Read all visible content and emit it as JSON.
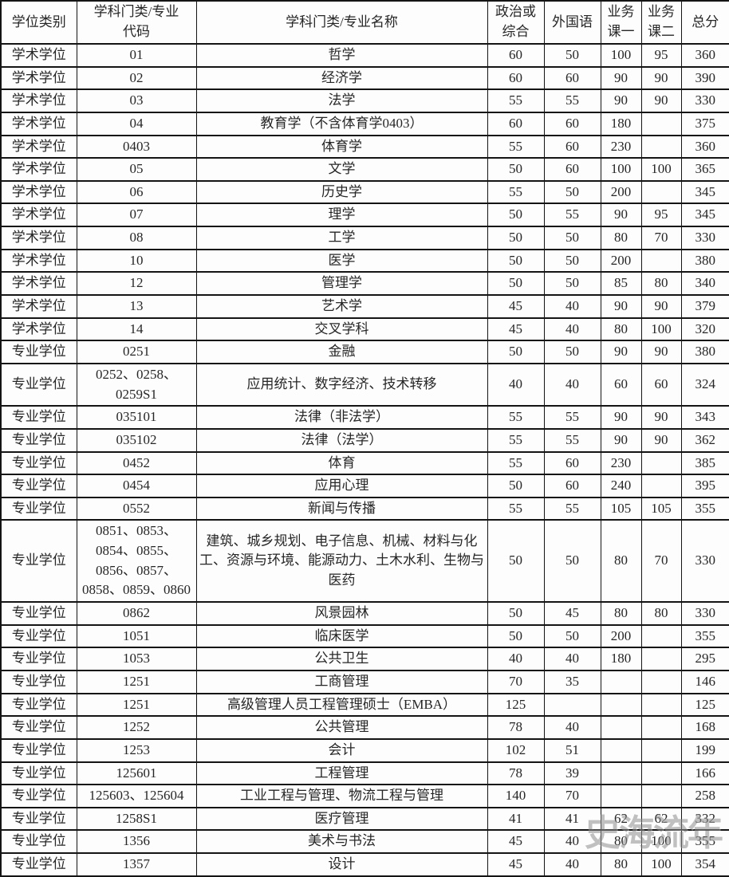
{
  "table": {
    "headers": [
      "学位类别",
      "学科门类/专业\n代码",
      "学科门类/专业名称",
      "政治或综合",
      "外国语",
      "业务课一",
      "业务课二",
      "总分"
    ],
    "rows": [
      {
        "category": "学术学位",
        "code": "01",
        "name": "哲学",
        "politics": "60",
        "foreign": "50",
        "course1": "100",
        "course2": "95",
        "total": "360"
      },
      {
        "category": "学术学位",
        "code": "02",
        "name": "经济学",
        "politics": "60",
        "foreign": "60",
        "course1": "90",
        "course2": "90",
        "total": "390"
      },
      {
        "category": "学术学位",
        "code": "03",
        "name": "法学",
        "politics": "55",
        "foreign": "55",
        "course1": "90",
        "course2": "90",
        "total": "330"
      },
      {
        "category": "学术学位",
        "code": "04",
        "name": "教育学（不含体育学0403）",
        "politics": "60",
        "foreign": "60",
        "course1": "180",
        "course2": "",
        "total": "375"
      },
      {
        "category": "学术学位",
        "code": "0403",
        "name": "体育学",
        "politics": "55",
        "foreign": "60",
        "course1": "230",
        "course2": "",
        "total": "360"
      },
      {
        "category": "学术学位",
        "code": "05",
        "name": "文学",
        "politics": "50",
        "foreign": "60",
        "course1": "100",
        "course2": "100",
        "total": "365"
      },
      {
        "category": "学术学位",
        "code": "06",
        "name": "历史学",
        "politics": "55",
        "foreign": "50",
        "course1": "200",
        "course2": "",
        "total": "345"
      },
      {
        "category": "学术学位",
        "code": "07",
        "name": "理学",
        "politics": "50",
        "foreign": "55",
        "course1": "90",
        "course2": "95",
        "total": "345"
      },
      {
        "category": "学术学位",
        "code": "08",
        "name": "工学",
        "politics": "50",
        "foreign": "50",
        "course1": "80",
        "course2": "70",
        "total": "330"
      },
      {
        "category": "学术学位",
        "code": "10",
        "name": "医学",
        "politics": "50",
        "foreign": "50",
        "course1": "200",
        "course2": "",
        "total": "380"
      },
      {
        "category": "学术学位",
        "code": "12",
        "name": "管理学",
        "politics": "50",
        "foreign": "50",
        "course1": "85",
        "course2": "80",
        "total": "340"
      },
      {
        "category": "学术学位",
        "code": "13",
        "name": "艺术学",
        "politics": "45",
        "foreign": "40",
        "course1": "90",
        "course2": "90",
        "total": "379"
      },
      {
        "category": "学术学位",
        "code": "14",
        "name": "交叉学科",
        "politics": "45",
        "foreign": "40",
        "course1": "80",
        "course2": "100",
        "total": "320"
      },
      {
        "category": "专业学位",
        "code": "0251",
        "name": "金融",
        "politics": "50",
        "foreign": "50",
        "course1": "90",
        "course2": "90",
        "total": "380"
      },
      {
        "category": "专业学位",
        "code": "0252、0258、0259S1",
        "name": "应用统计、数字经济、技术转移",
        "politics": "40",
        "foreign": "40",
        "course1": "60",
        "course2": "60",
        "total": "324"
      },
      {
        "category": "专业学位",
        "code": "035101",
        "name": "法律（非法学）",
        "politics": "55",
        "foreign": "55",
        "course1": "90",
        "course2": "90",
        "total": "343"
      },
      {
        "category": "专业学位",
        "code": "035102",
        "name": "法律（法学）",
        "politics": "55",
        "foreign": "55",
        "course1": "90",
        "course2": "90",
        "total": "362"
      },
      {
        "category": "专业学位",
        "code": "0452",
        "name": "体育",
        "politics": "55",
        "foreign": "60",
        "course1": "230",
        "course2": "",
        "total": "385"
      },
      {
        "category": "专业学位",
        "code": "0454",
        "name": "应用心理",
        "politics": "50",
        "foreign": "60",
        "course1": "240",
        "course2": "",
        "total": "395"
      },
      {
        "category": "专业学位",
        "code": "0552",
        "name": "新闻与传播",
        "politics": "55",
        "foreign": "55",
        "course1": "105",
        "course2": "105",
        "total": "355"
      },
      {
        "category": "专业学位",
        "code": "0851、0853、0854、0855、0856、0857、0858、0859、0860",
        "name": "建筑、城乡规划、电子信息、机械、材料与化工、资源与环境、能源动力、土木水利、生物与医药",
        "politics": "50",
        "foreign": "50",
        "course1": "80",
        "course2": "70",
        "total": "330"
      },
      {
        "category": "专业学位",
        "code": "0862",
        "name": "风景园林",
        "politics": "50",
        "foreign": "45",
        "course1": "80",
        "course2": "80",
        "total": "330"
      },
      {
        "category": "专业学位",
        "code": "1051",
        "name": "临床医学",
        "politics": "50",
        "foreign": "50",
        "course1": "200",
        "course2": "",
        "total": "355"
      },
      {
        "category": "专业学位",
        "code": "1053",
        "name": "公共卫生",
        "politics": "40",
        "foreign": "40",
        "course1": "180",
        "course2": "",
        "total": "295"
      },
      {
        "category": "专业学位",
        "code": "1251",
        "name": "工商管理",
        "politics": "70",
        "foreign": "35",
        "course1": "",
        "course2": "",
        "total": "146"
      },
      {
        "category": "专业学位",
        "code": "1251",
        "name": "高级管理人员工程管理硕士（EMBA）",
        "politics": "125",
        "foreign": "",
        "course1": "",
        "course2": "",
        "total": "125"
      },
      {
        "category": "专业学位",
        "code": "1252",
        "name": "公共管理",
        "politics": "78",
        "foreign": "40",
        "course1": "",
        "course2": "",
        "total": "168"
      },
      {
        "category": "专业学位",
        "code": "1253",
        "name": "会计",
        "politics": "102",
        "foreign": "51",
        "course1": "",
        "course2": "",
        "total": "199"
      },
      {
        "category": "专业学位",
        "code": "125601",
        "name": "工程管理",
        "politics": "78",
        "foreign": "39",
        "course1": "",
        "course2": "",
        "total": "166"
      },
      {
        "category": "专业学位",
        "code": "125603、125604",
        "name": "工业工程与管理、物流工程与管理",
        "politics": "140",
        "foreign": "70",
        "course1": "",
        "course2": "",
        "total": "258"
      },
      {
        "category": "专业学位",
        "code": "1258S1",
        "name": "医疗管理",
        "politics": "41",
        "foreign": "41",
        "course1": "62",
        "course2": "62",
        "total": "332"
      },
      {
        "category": "专业学位",
        "code": "1356",
        "name": "美术与书法",
        "politics": "45",
        "foreign": "40",
        "course1": "80",
        "course2": "100",
        "total": "355"
      },
      {
        "category": "专业学位",
        "code": "1357",
        "name": "设计",
        "politics": "45",
        "foreign": "40",
        "course1": "80",
        "course2": "100",
        "total": "354"
      }
    ]
  },
  "watermark": {
    "text": "史海流年"
  }
}
